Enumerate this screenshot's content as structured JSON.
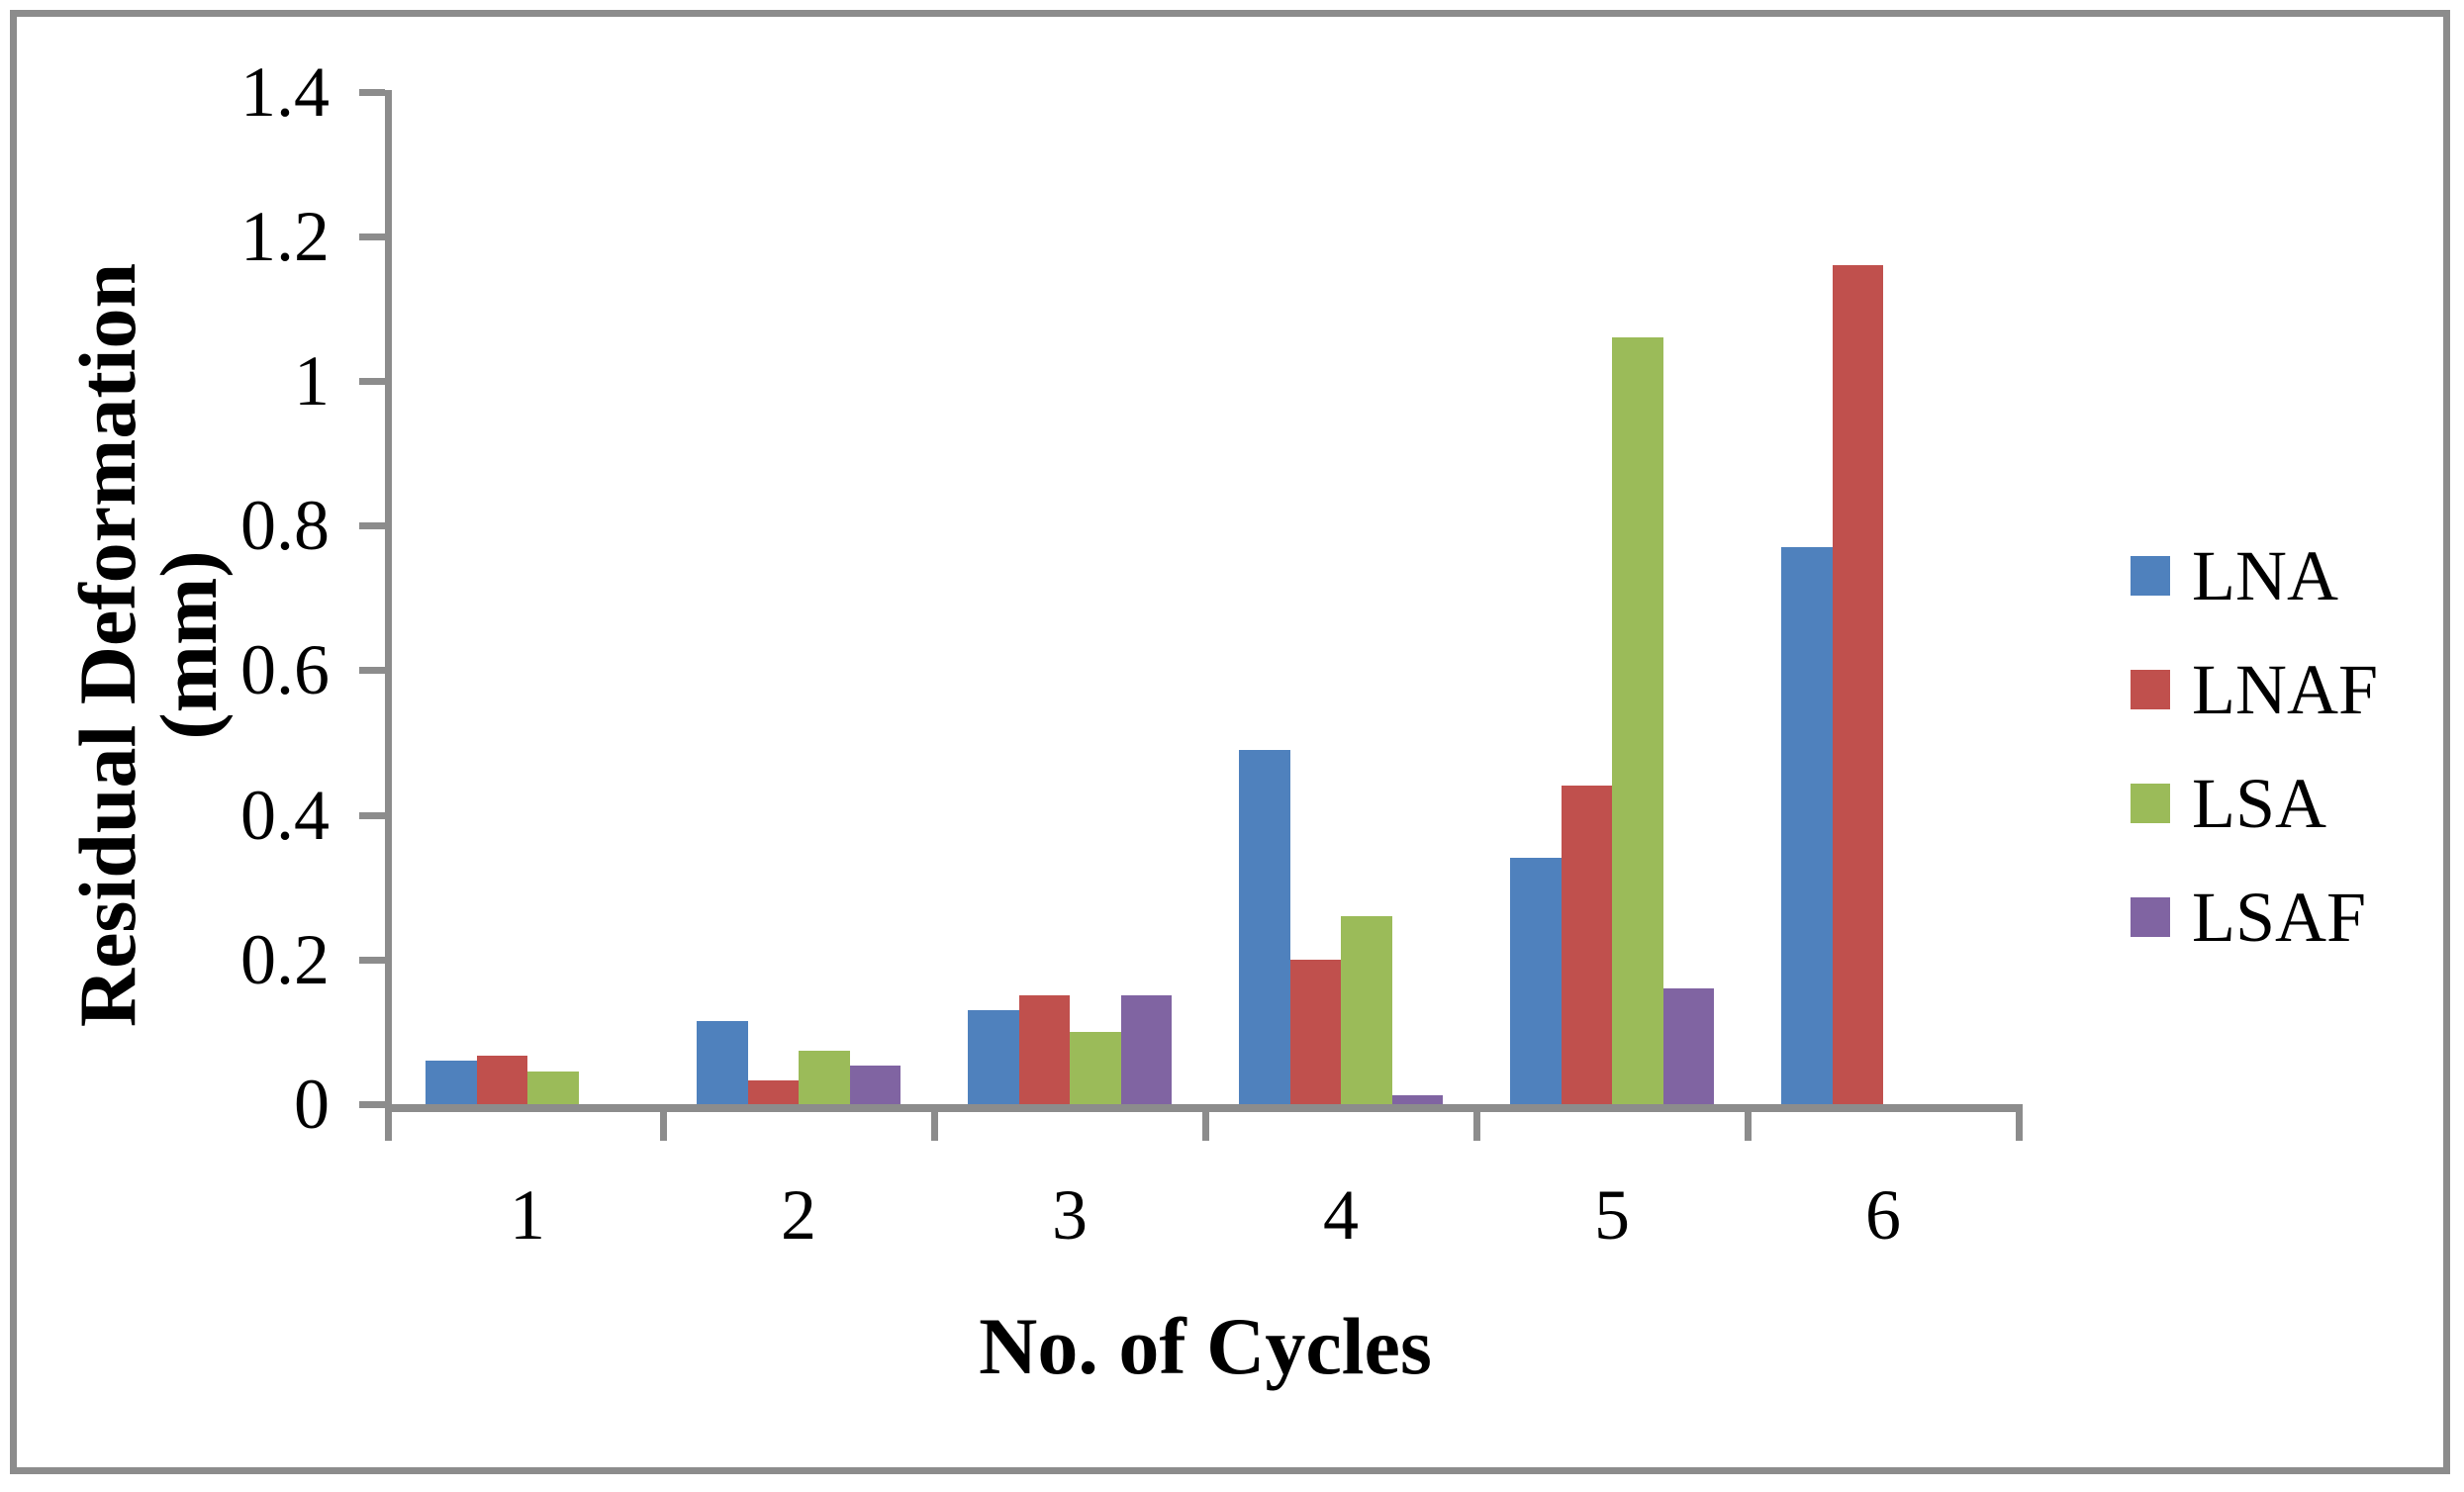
{
  "figure": {
    "border_color": "#8c8c8c",
    "background": "#ffffff"
  },
  "chart_data": {
    "type": "bar",
    "title": "",
    "xlabel": "No. of Cycles",
    "ylabel": "Residual Deformation (mm)",
    "categories": [
      "1",
      "2",
      "3",
      "4",
      "5",
      "6"
    ],
    "series": [
      {
        "name": "LNA",
        "color": "#4f81bd",
        "values": [
          0.06,
          0.115,
          0.13,
          0.49,
          0.34,
          0.77
        ]
      },
      {
        "name": "LNAF",
        "color": "#c0504d",
        "values": [
          0.067,
          0.033,
          0.15,
          0.2,
          0.44,
          1.16
        ]
      },
      {
        "name": "LSA",
        "color": "#9bbb59",
        "values": [
          0.045,
          0.074,
          0.1,
          0.26,
          1.06,
          0
        ]
      },
      {
        "name": "LSAF",
        "color": "#8064a2",
        "values": [
          0,
          0.053,
          0.15,
          0.012,
          0.16,
          0
        ]
      }
    ],
    "y_ticks": [
      {
        "label": "0",
        "value": 0
      },
      {
        "label": "0.2",
        "value": 0.2
      },
      {
        "label": "0.4",
        "value": 0.4
      },
      {
        "label": "0.6",
        "value": 0.6
      },
      {
        "label": "0.8",
        "value": 0.8
      },
      {
        "label": "1",
        "value": 1.0
      },
      {
        "label": "1.2",
        "value": 1.2
      },
      {
        "label": "1.4",
        "value": 1.4
      }
    ],
    "ylim": [
      0,
      1.4
    ],
    "grid": false,
    "legend_position": "right",
    "axis_color": "#8c8c8c"
  }
}
